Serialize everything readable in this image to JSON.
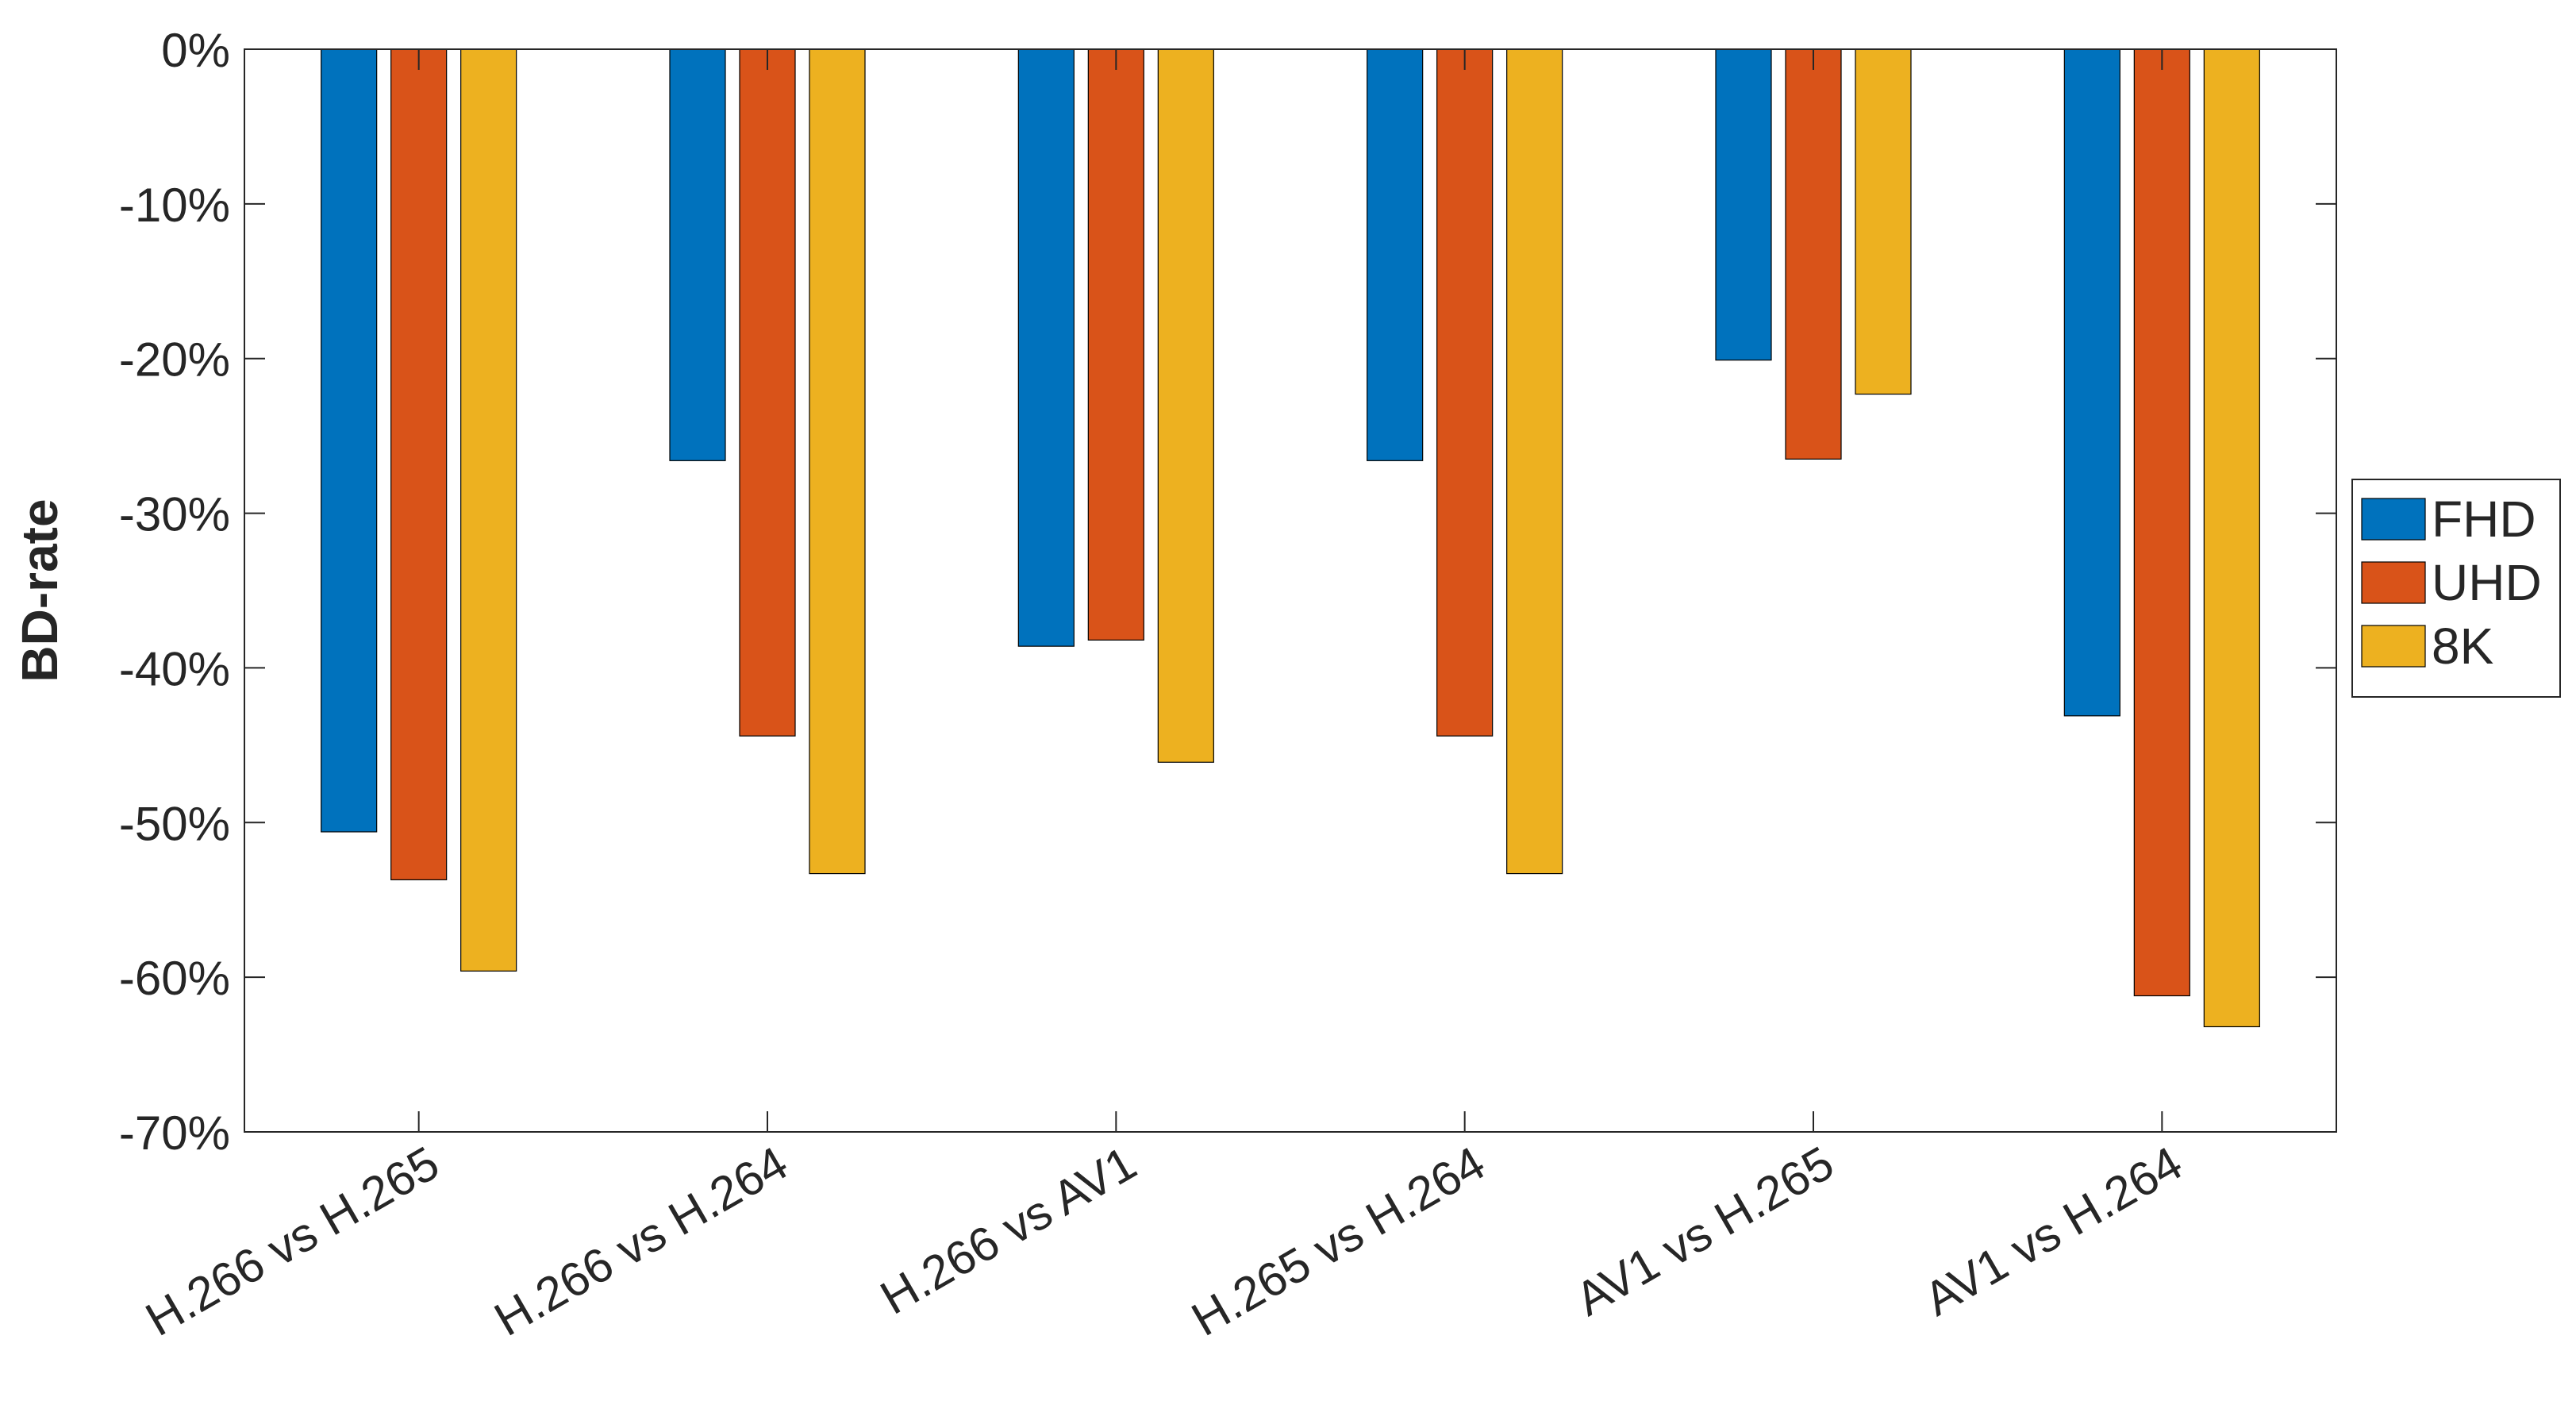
{
  "chart_data": {
    "type": "bar",
    "title": "",
    "xlabel": "",
    "ylabel": "BD-rate",
    "categories": [
      "H.266 vs H.265",
      "H.266 vs H.264",
      "H.266 vs AV1",
      "H.265 vs H.264",
      "AV1 vs H.265",
      "AV1 vs H.264"
    ],
    "series": [
      {
        "name": "FHD",
        "color": "#0072BD",
        "values": [
          -50.6,
          -26.6,
          -38.6,
          -26.6,
          -20.1,
          -43.1
        ]
      },
      {
        "name": "UHD",
        "color": "#D95319",
        "values": [
          -53.7,
          -44.4,
          -38.2,
          -44.4,
          -26.5,
          -61.2
        ]
      },
      {
        "name": "8K",
        "color": "#EDB120",
        "values": [
          -59.6,
          -53.3,
          -46.1,
          -53.3,
          -22.3,
          -63.2
        ]
      }
    ],
    "ylim": [
      -70,
      0
    ],
    "yticks": [
      0,
      -10,
      -20,
      -30,
      -40,
      -50,
      -60,
      -70
    ],
    "ytick_labels": [
      "0%",
      "-10%",
      "-20%",
      "-30%",
      "-40%",
      "-50%",
      "-60%",
      "-70%"
    ],
    "grid": false,
    "legend_position": "right"
  }
}
